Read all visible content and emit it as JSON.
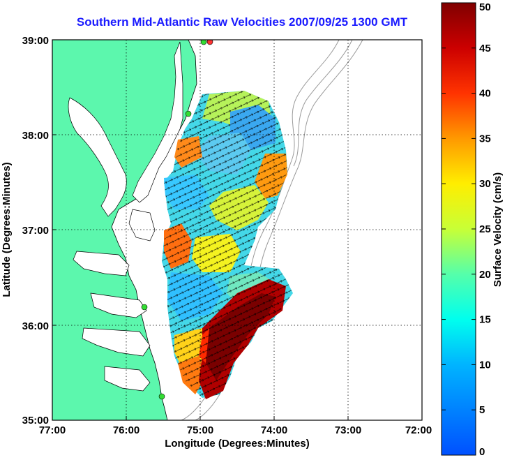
{
  "title": "Southern Mid-Atlantic Raw Velocities 2007/09/25 1300 GMT",
  "xlabel": "Longitude (Degrees:Minutes)",
  "ylabel": "Latitude (Degrees:Minutes)",
  "colorbar": {
    "label": "Surface Velocity (cm/s)",
    "ticks": [
      "0",
      "5",
      "10",
      "15",
      "20",
      "25",
      "30",
      "35",
      "40",
      "45",
      "50"
    ],
    "range": [
      0,
      50
    ]
  },
  "lon_ticks": [
    "77:00",
    "76:00",
    "75:00",
    "74:00",
    "73:00",
    "72:00"
  ],
  "lat_ticks": [
    "39:00",
    "38:00",
    "37:00",
    "36:00",
    "35:00"
  ],
  "colors": {
    "land": "#5cf7ad",
    "coastline": "#000000",
    "bathymetry": "#9a9a9a",
    "title": "#1a1aff",
    "station_marker": "#33dd33",
    "station_marker_alt": "#ff3333"
  }
}
